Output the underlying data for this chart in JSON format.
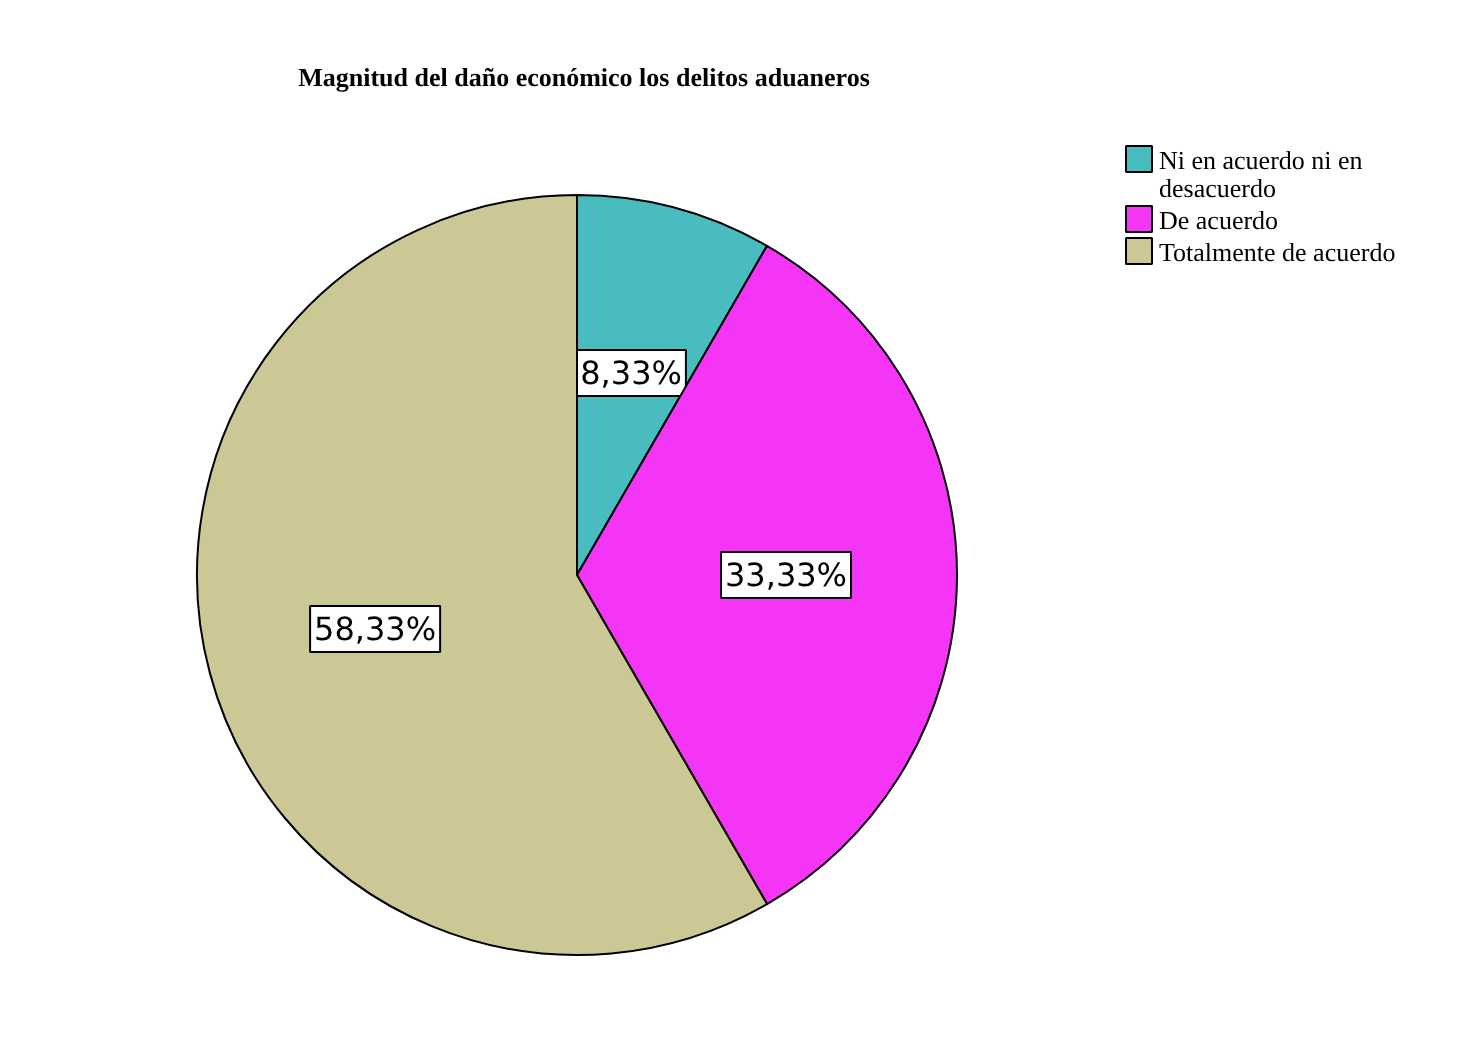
{
  "chart_data": {
    "type": "pie",
    "title": "Magnitud del daño económico los delitos aduaneros",
    "categories": [
      "Ni en acuerdo ni en desacuerdo",
      "De acuerdo",
      "Totalmente de acuerdo"
    ],
    "values": [
      8.33,
      33.33,
      58.33
    ],
    "colors": [
      "#48bcbf",
      "#f535f5",
      "#ccc896"
    ],
    "value_labels": [
      "8,33%",
      "33,33%",
      "58,33%"
    ],
    "legend": "top right"
  }
}
